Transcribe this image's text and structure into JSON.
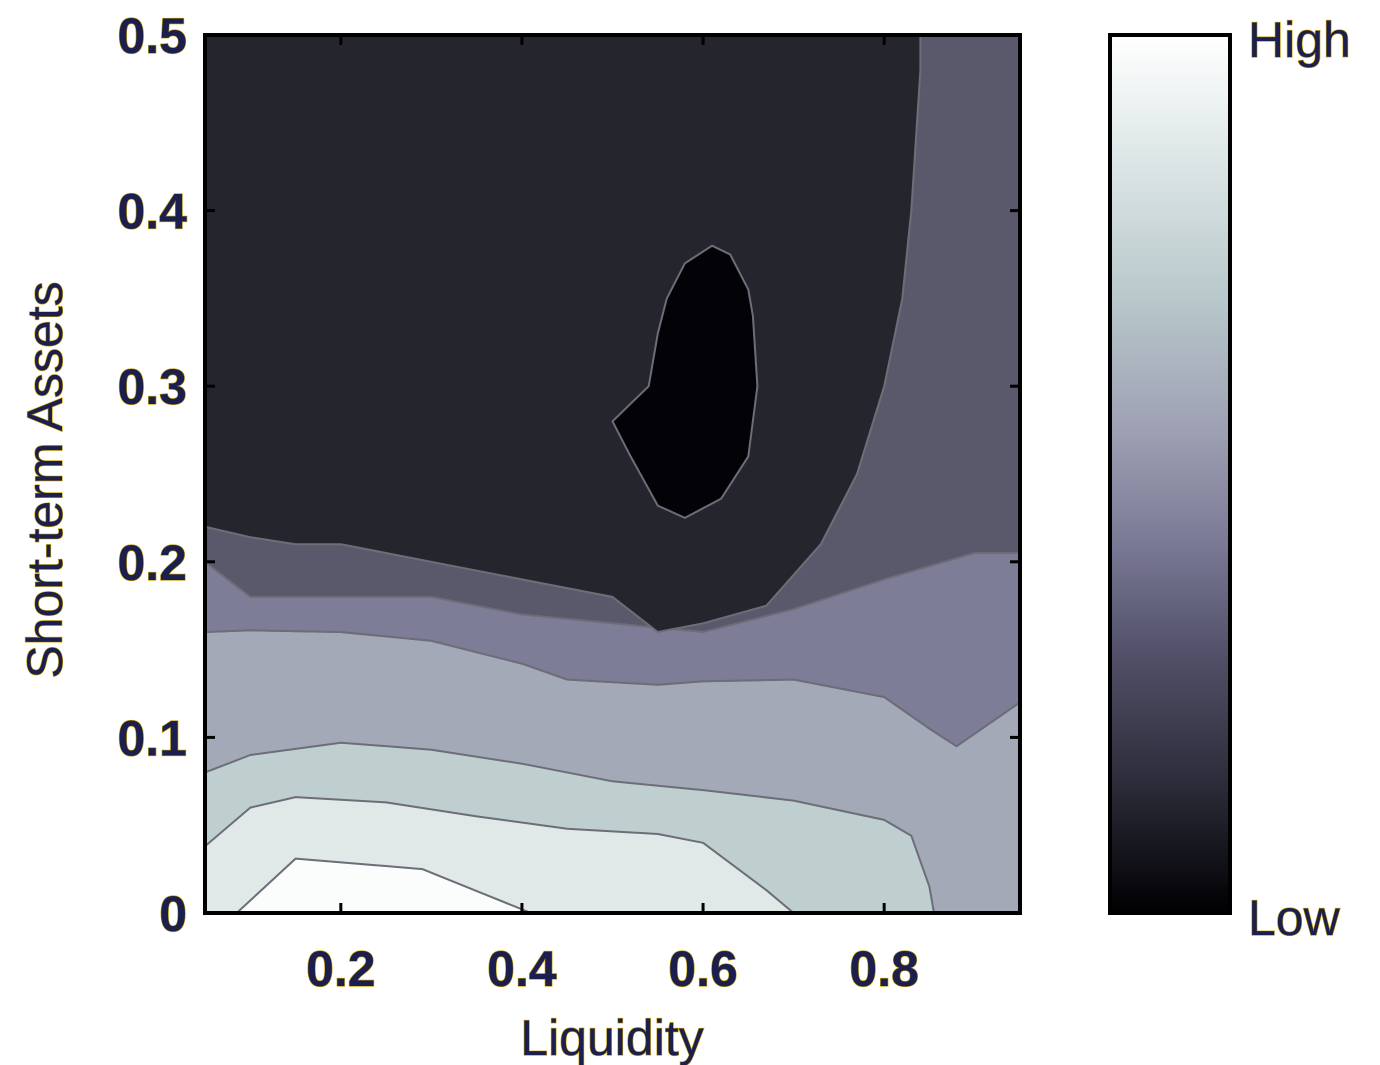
{
  "chart_data": {
    "type": "contour",
    "xlabel": "Liquidity",
    "ylabel": "Short-term Assets",
    "xlim": [
      0.05,
      0.95
    ],
    "ylim": [
      0,
      0.5
    ],
    "x_ticks": [
      0.2,
      0.4,
      0.6,
      0.8
    ],
    "x_tick_labels": [
      "0.2",
      "0.4",
      "0.6",
      "0.8"
    ],
    "y_ticks": [
      0,
      0.1,
      0.2,
      0.3,
      0.4,
      0.5
    ],
    "y_tick_labels": [
      "0",
      "0.1",
      "0.2",
      "0.3",
      "0.4",
      "0.5"
    ],
    "colorbar": {
      "high_label": "High",
      "low_label": "Low",
      "colormap": "bone"
    },
    "levels": [
      {
        "name": "level-1",
        "color": "#e0e8e8"
      },
      {
        "name": "level-2",
        "color": "#bfcfd0"
      },
      {
        "name": "level-3",
        "color": "#a3a9b6"
      },
      {
        "name": "level-4",
        "color": "#7e7d98"
      },
      {
        "name": "level-5",
        "color": "#5a596c"
      },
      {
        "name": "level-6",
        "color": "#25252e"
      },
      {
        "name": "level-7",
        "color": "#030307"
      }
    ],
    "background_color": "#a3a9b6",
    "top_level_color": "#fbfcfc",
    "contours": [
      {
        "name": "contour-highest-region",
        "fill": "#fbfcfc",
        "closed": true,
        "points": [
          [
            0.085,
            0
          ],
          [
            0.15,
            0.031
          ],
          [
            0.29,
            0.025
          ],
          [
            0.41,
            0
          ]
        ]
      },
      {
        "name": "contour-level-1",
        "fill": "#e0e8e8",
        "closed": true,
        "points": [
          [
            0.05,
            0
          ],
          [
            0.05,
            0.038
          ],
          [
            0.1,
            0.06
          ],
          [
            0.15,
            0.066
          ],
          [
            0.25,
            0.063
          ],
          [
            0.35,
            0.055
          ],
          [
            0.45,
            0.048
          ],
          [
            0.55,
            0.045
          ],
          [
            0.6,
            0.04
          ],
          [
            0.67,
            0.013
          ],
          [
            0.7,
            0
          ]
        ]
      },
      {
        "name": "contour-level-2",
        "fill": "#bfcfd0",
        "closed": true,
        "points": [
          [
            0.05,
            0
          ],
          [
            0.05,
            0.08
          ],
          [
            0.1,
            0.09
          ],
          [
            0.2,
            0.097
          ],
          [
            0.3,
            0.093
          ],
          [
            0.4,
            0.085
          ],
          [
            0.5,
            0.075
          ],
          [
            0.6,
            0.07
          ],
          [
            0.7,
            0.064
          ],
          [
            0.8,
            0.053
          ],
          [
            0.83,
            0.044
          ],
          [
            0.85,
            0.015
          ],
          [
            0.855,
            0
          ]
        ]
      },
      {
        "name": "contour-level-4",
        "fill": "#7e7d98",
        "closed": true,
        "points": [
          [
            0.05,
            0.1
          ],
          [
            0.05,
            0.16
          ],
          [
            0.1,
            0.161
          ],
          [
            0.2,
            0.16
          ],
          [
            0.3,
            0.155
          ],
          [
            0.4,
            0.142
          ],
          [
            0.45,
            0.133
          ],
          [
            0.55,
            0.13
          ],
          [
            0.6,
            0.132
          ],
          [
            0.7,
            0.133
          ],
          [
            0.8,
            0.123
          ],
          [
            0.85,
            0.105
          ],
          [
            0.88,
            0.095
          ],
          [
            0.95,
            0.12
          ],
          [
            0.95,
            0.205
          ],
          [
            0.9,
            0.205
          ],
          [
            0.8,
            0.19
          ],
          [
            0.7,
            0.173
          ],
          [
            0.6,
            0.16
          ],
          [
            0.5,
            0.165
          ],
          [
            0.4,
            0.17
          ],
          [
            0.3,
            0.18
          ],
          [
            0.2,
            0.18
          ],
          [
            0.1,
            0.18
          ],
          [
            0.05,
            0.2
          ]
        ]
      },
      {
        "name": "contour-level-5",
        "fill": "#5a596c",
        "closed": true,
        "points": [
          [
            0.05,
            0.16
          ],
          [
            0.1,
            0.161
          ],
          [
            0.2,
            0.16
          ],
          [
            0.3,
            0.155
          ],
          [
            0.4,
            0.142
          ],
          [
            0.45,
            0.133
          ],
          [
            0.55,
            0.13
          ],
          [
            0.6,
            0.132
          ],
          [
            0.7,
            0.133
          ],
          [
            0.8,
            0.123
          ],
          [
            0.85,
            0.105
          ],
          [
            0.88,
            0.095
          ],
          [
            0.95,
            0.12
          ],
          [
            0.95,
            0.5
          ],
          [
            0.84,
            0.5
          ],
          [
            0.84,
            0.48
          ],
          [
            0.83,
            0.4
          ],
          [
            0.82,
            0.35
          ],
          [
            0.8,
            0.3
          ],
          [
            0.77,
            0.25
          ],
          [
            0.73,
            0.21
          ],
          [
            0.67,
            0.19
          ],
          [
            0.6,
            0.18
          ],
          [
            0.5,
            0.18
          ],
          [
            0.4,
            0.19
          ],
          [
            0.3,
            0.2
          ],
          [
            0.2,
            0.21
          ],
          [
            0.1,
            0.214
          ],
          [
            0.05,
            0.22
          ]
        ]
      },
      {
        "name": "contour-level-6",
        "fill": "#25252e",
        "closed": true,
        "points": [
          [
            0.05,
            0.22
          ],
          [
            0.1,
            0.214
          ],
          [
            0.15,
            0.21
          ],
          [
            0.2,
            0.21
          ],
          [
            0.3,
            0.2
          ],
          [
            0.4,
            0.19
          ],
          [
            0.5,
            0.18
          ],
          [
            0.55,
            0.16
          ],
          [
            0.6,
            0.165
          ],
          [
            0.67,
            0.175
          ],
          [
            0.73,
            0.21
          ],
          [
            0.77,
            0.25
          ],
          [
            0.8,
            0.3
          ],
          [
            0.82,
            0.35
          ],
          [
            0.83,
            0.4
          ],
          [
            0.84,
            0.48
          ],
          [
            0.84,
            0.5
          ],
          [
            0.05,
            0.5
          ]
        ]
      },
      {
        "name": "contour-level-7",
        "fill": "#030307",
        "closed": true,
        "points": [
          [
            0.54,
            0.3
          ],
          [
            0.55,
            0.33
          ],
          [
            0.56,
            0.35
          ],
          [
            0.58,
            0.37
          ],
          [
            0.61,
            0.38
          ],
          [
            0.63,
            0.375
          ],
          [
            0.65,
            0.355
          ],
          [
            0.655,
            0.34
          ],
          [
            0.66,
            0.3
          ],
          [
            0.65,
            0.26
          ],
          [
            0.62,
            0.236
          ],
          [
            0.58,
            0.225
          ],
          [
            0.55,
            0.232
          ],
          [
            0.52,
            0.26
          ],
          [
            0.5,
            0.28
          ]
        ]
      }
    ]
  }
}
